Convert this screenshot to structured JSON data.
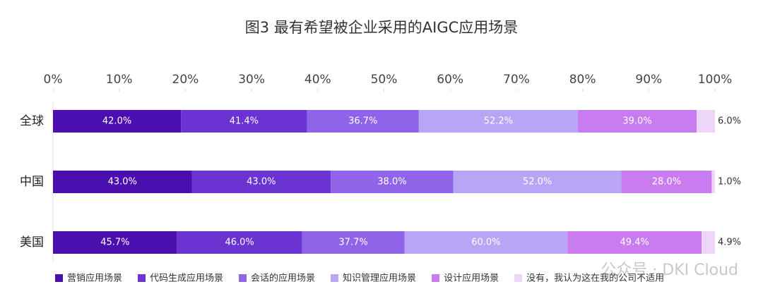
{
  "chart_data": {
    "type": "bar",
    "stacking": "percent",
    "orientation": "horizontal",
    "title": "图3 最有希望被企业采用的AIGC应用场景",
    "categories": [
      "全球",
      "中国",
      "美国"
    ],
    "series": [
      {
        "name": "营销应用场景",
        "color": "#4b0fb0",
        "values": [
          42.0,
          43.0,
          45.7
        ],
        "value_labels": [
          "42.0%",
          "43.0%",
          "45.7%"
        ]
      },
      {
        "name": "代码生成应用场景",
        "color": "#6a33d2",
        "values": [
          41.4,
          43.0,
          46.0
        ],
        "value_labels": [
          "41.4%",
          "43.0%",
          "46.0%"
        ]
      },
      {
        "name": "会话的应用场景",
        "color": "#8f64e8",
        "values": [
          36.7,
          38.0,
          37.7
        ],
        "value_labels": [
          "36.7%",
          "38.0%",
          "37.7%"
        ]
      },
      {
        "name": "知识管理应用场景",
        "color": "#b9a5f5",
        "values": [
          52.2,
          52.0,
          60.0
        ],
        "value_labels": [
          "52.2%",
          "52.0%",
          "60.0%"
        ]
      },
      {
        "name": "设计应用场景",
        "color": "#c97cf0",
        "values": [
          39.0,
          28.0,
          49.4
        ],
        "value_labels": [
          "39.0%",
          "28.0%",
          "49.4%"
        ]
      },
      {
        "name": "没有，我认为这在我的公司不适用",
        "color": "#eed6f9",
        "values": [
          6.0,
          1.0,
          4.9
        ],
        "value_labels": [
          "6.0%",
          "1.0%",
          "4.9%"
        ]
      }
    ],
    "xlim": [
      0,
      100
    ],
    "xticks": [
      {
        "value": 0,
        "label": "0%"
      },
      {
        "value": 10,
        "label": "10%"
      },
      {
        "value": 20,
        "label": "20%"
      },
      {
        "value": 30,
        "label": "30%"
      },
      {
        "value": 40,
        "label": "40%"
      },
      {
        "value": 50,
        "label": "50%"
      },
      {
        "value": 60,
        "label": "60%"
      },
      {
        "value": 70,
        "label": "70%"
      },
      {
        "value": 80,
        "label": "80%"
      },
      {
        "value": 90,
        "label": "90%"
      },
      {
        "value": 100,
        "label": "100%"
      }
    ],
    "legend": "bottom",
    "watermark": "公众号 · DKI Cloud"
  }
}
